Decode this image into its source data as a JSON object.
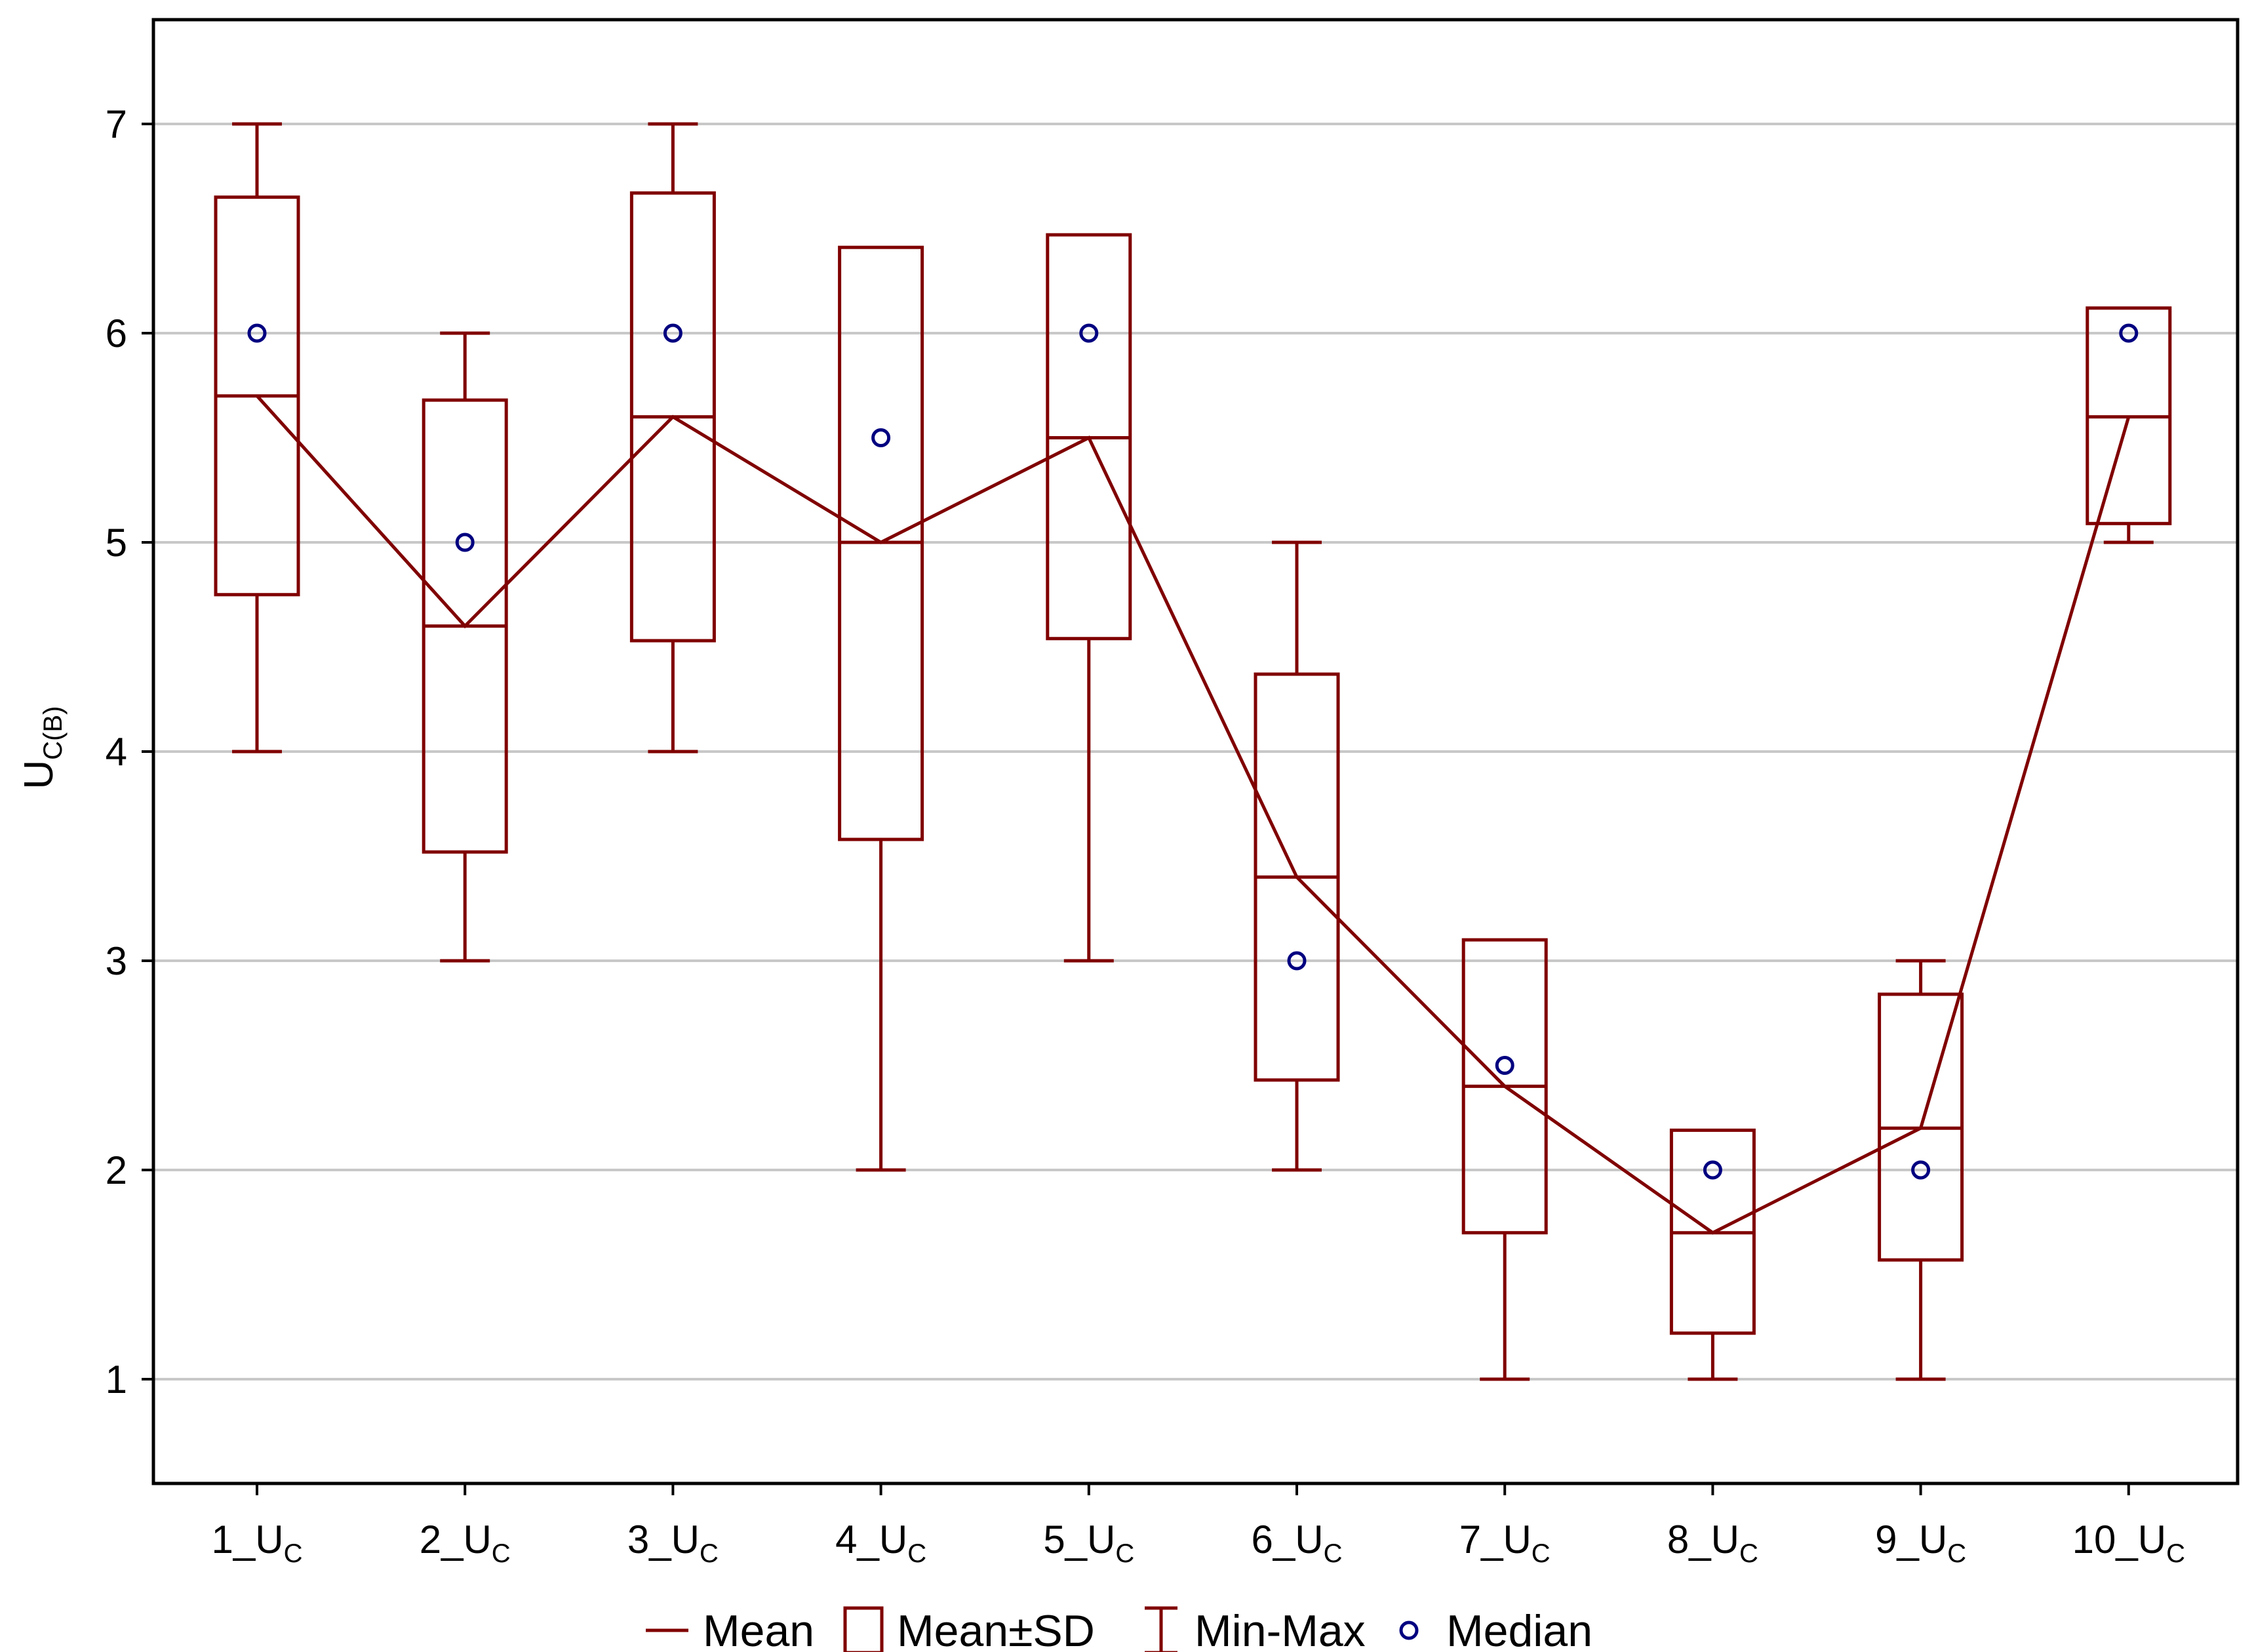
{
  "chart_data": {
    "type": "boxplot",
    "title": "",
    "xlabel": "",
    "ylabel": {
      "main": "U",
      "sub": "C(B)"
    },
    "ylim": [
      0.5,
      7.5
    ],
    "yticks": [
      1,
      2,
      3,
      4,
      5,
      6,
      7
    ],
    "grid": true,
    "categories": [
      {
        "main": "1_U",
        "sub": "C"
      },
      {
        "main": "2_U",
        "sub": "C"
      },
      {
        "main": "3_U",
        "sub": "C"
      },
      {
        "main": "4_U",
        "sub": "C"
      },
      {
        "main": "5_U",
        "sub": "C"
      },
      {
        "main": "6_U",
        "sub": "C"
      },
      {
        "main": "7_U",
        "sub": "C"
      },
      {
        "main": "8_U",
        "sub": "C"
      },
      {
        "main": "9_U",
        "sub": "C"
      },
      {
        "main": "10_U",
        "sub": "C"
      }
    ],
    "mean": [
      5.7,
      4.6,
      5.6,
      5.0,
      5.5,
      3.4,
      2.4,
      1.7,
      2.2,
      5.6
    ],
    "sd_low": [
      4.75,
      3.52,
      4.53,
      3.58,
      4.54,
      2.43,
      1.7,
      1.22,
      1.57,
      5.09
    ],
    "sd_high": [
      6.65,
      5.68,
      6.67,
      6.41,
      6.47,
      4.37,
      3.1,
      2.19,
      2.84,
      6.12
    ],
    "min": [
      4,
      3,
      4,
      2,
      3,
      2,
      1,
      1,
      1,
      5
    ],
    "max": [
      7,
      6,
      7,
      null,
      null,
      5,
      null,
      null,
      3,
      null
    ],
    "median": [
      6.0,
      5.0,
      6.0,
      5.5,
      6.0,
      3.0,
      2.5,
      2.0,
      2.0,
      6.0
    ],
    "legend": {
      "position": "bottom-center",
      "items": [
        "Mean",
        "Mean±SD",
        "Min-Max",
        "Median"
      ]
    },
    "colors": {
      "series": "#800000",
      "median": "#000080",
      "grid": "#c8c8c8",
      "axis": "#000000"
    }
  }
}
